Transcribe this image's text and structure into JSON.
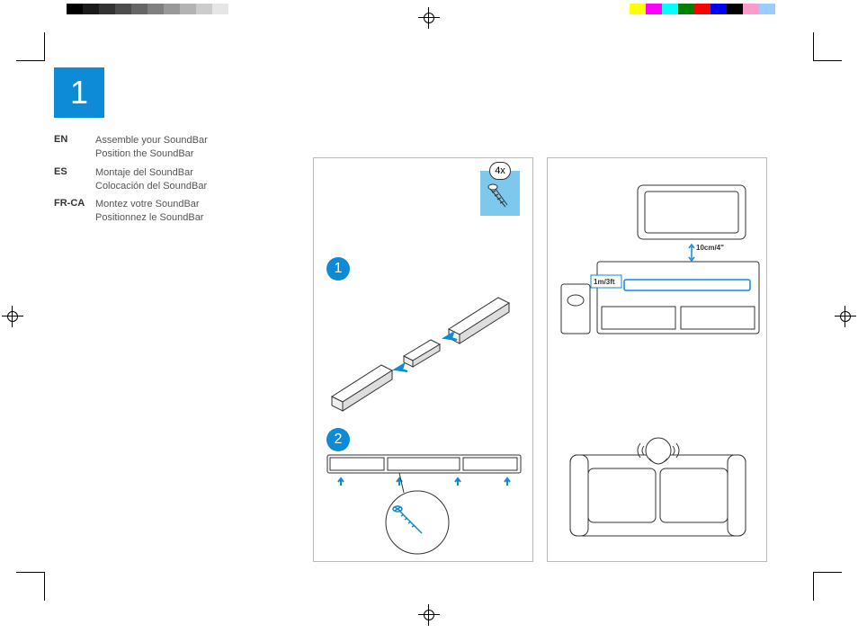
{
  "colors": {
    "accent": "#0e8bd6",
    "accent2": "#7ec8ed",
    "screwboxbg": "#7ec8ed",
    "badge": "#0e8bd6",
    "text": "#555555"
  },
  "step_number": "1",
  "languages": [
    {
      "code": "EN",
      "line1": "Assemble your SoundBar",
      "line2": "Position the SoundBar"
    },
    {
      "code": "ES",
      "line1": "Montaje del SoundBar",
      "line2": "Colocación del SoundBar"
    },
    {
      "code": "FR-CA",
      "line1": "Montez votre SoundBar",
      "line2": "Positionnez le SoundBar"
    }
  ],
  "left_panel": {
    "screw_count": "4x",
    "substep1": "1",
    "substep2": "2"
  },
  "right_panel": {
    "dist_top": "10cm/4\"",
    "dist_side": "1m/3ft"
  },
  "reg_gray": [
    "#000000",
    "#1a1a1a",
    "#333333",
    "#4d4d4d",
    "#666666",
    "#808080",
    "#999999",
    "#b3b3b3",
    "#cccccc",
    "#e6e6e6",
    "#ffffff"
  ],
  "reg_color": [
    "#ffff00",
    "#ff00ff",
    "#00ffff",
    "#008000",
    "#ff0000",
    "#0000ff",
    "#000000",
    "#ff99cc",
    "#99ccff",
    "#ffffff"
  ]
}
